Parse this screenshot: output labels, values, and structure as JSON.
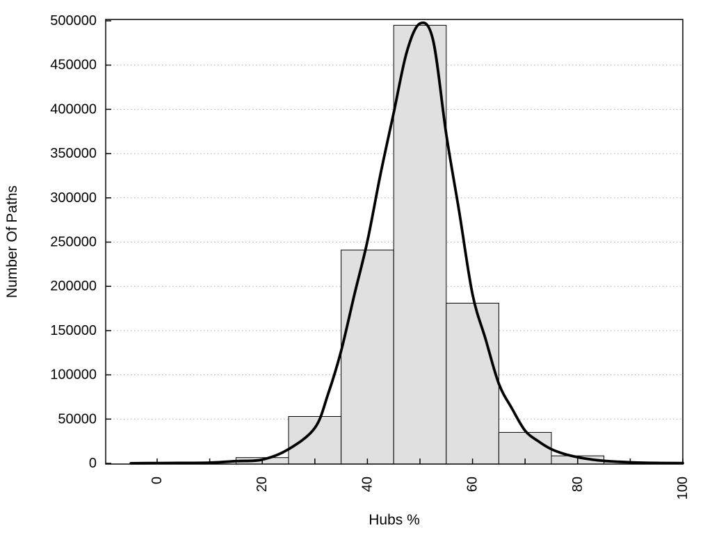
{
  "chart_data": {
    "type": "bar",
    "subtype": "histogram_with_density_curve",
    "title": "",
    "xlabel": "Hubs %",
    "ylabel": "Number Of Paths",
    "xlim": [
      -10,
      100
    ],
    "ylim": [
      0,
      500000
    ],
    "legend": "none",
    "grid": {
      "horizontal_dotted": true,
      "color": "#aaaaaa"
    },
    "x_major_tick_values": [
      0,
      20,
      40,
      60,
      80,
      100
    ],
    "x_major_tick_labels": [
      "0",
      "20",
      "40",
      "60",
      "80",
      "100"
    ],
    "x_minor_tick_values": [
      0,
      10,
      20,
      30,
      40,
      50,
      60,
      70,
      80,
      90,
      100
    ],
    "x_tick_label_rotation_deg": -90,
    "y_tick_values": [
      0,
      50000,
      100000,
      150000,
      200000,
      250000,
      300000,
      350000,
      400000,
      450000,
      500000
    ],
    "y_tick_labels": [
      "0",
      "50000",
      "100000",
      "150000",
      "200000",
      "250000",
      "300000",
      "350000",
      "400000",
      "450000",
      "500000"
    ],
    "histogram": {
      "fill": "#e0e0e0",
      "stroke": "#000000",
      "bin_width": 10,
      "bins": [
        {
          "start": 15,
          "end": 25,
          "count": 6500
        },
        {
          "start": 25,
          "end": 35,
          "count": 53000
        },
        {
          "start": 35,
          "end": 45,
          "count": 241000
        },
        {
          "start": 45,
          "end": 55,
          "count": 495000
        },
        {
          "start": 55,
          "end": 65,
          "count": 181000
        },
        {
          "start": 65,
          "end": 75,
          "count": 35000
        },
        {
          "start": 75,
          "end": 85,
          "count": 8500
        },
        {
          "start": 85,
          "end": 95,
          "count": 1500
        }
      ]
    },
    "density_curve": {
      "color": "#000000",
      "stroke_width": 3.8,
      "peak": {
        "x": 50,
        "y": 497000
      },
      "points": [
        [
          -5,
          100
        ],
        [
          0,
          300
        ],
        [
          5,
          500
        ],
        [
          10,
          800
        ],
        [
          15,
          2500
        ],
        [
          20,
          4200
        ],
        [
          25,
          16000
        ],
        [
          30,
          40000
        ],
        [
          32.5,
          78000
        ],
        [
          35,
          127000
        ],
        [
          37.5,
          190000
        ],
        [
          40,
          251000
        ],
        [
          42.5,
          327000
        ],
        [
          45,
          396000
        ],
        [
          47.5,
          465000
        ],
        [
          50,
          497000
        ],
        [
          52.5,
          478000
        ],
        [
          55,
          372000
        ],
        [
          57.5,
          283000
        ],
        [
          60,
          191000
        ],
        [
          62.5,
          140000
        ],
        [
          65,
          90000
        ],
        [
          67.5,
          62000
        ],
        [
          70,
          37000
        ],
        [
          72.5,
          25000
        ],
        [
          75,
          16000
        ],
        [
          77.5,
          10500
        ],
        [
          80,
          7000
        ],
        [
          82.5,
          4500
        ],
        [
          85,
          2800
        ],
        [
          90,
          1200
        ],
        [
          95,
          500
        ],
        [
          100,
          300
        ]
      ]
    }
  }
}
